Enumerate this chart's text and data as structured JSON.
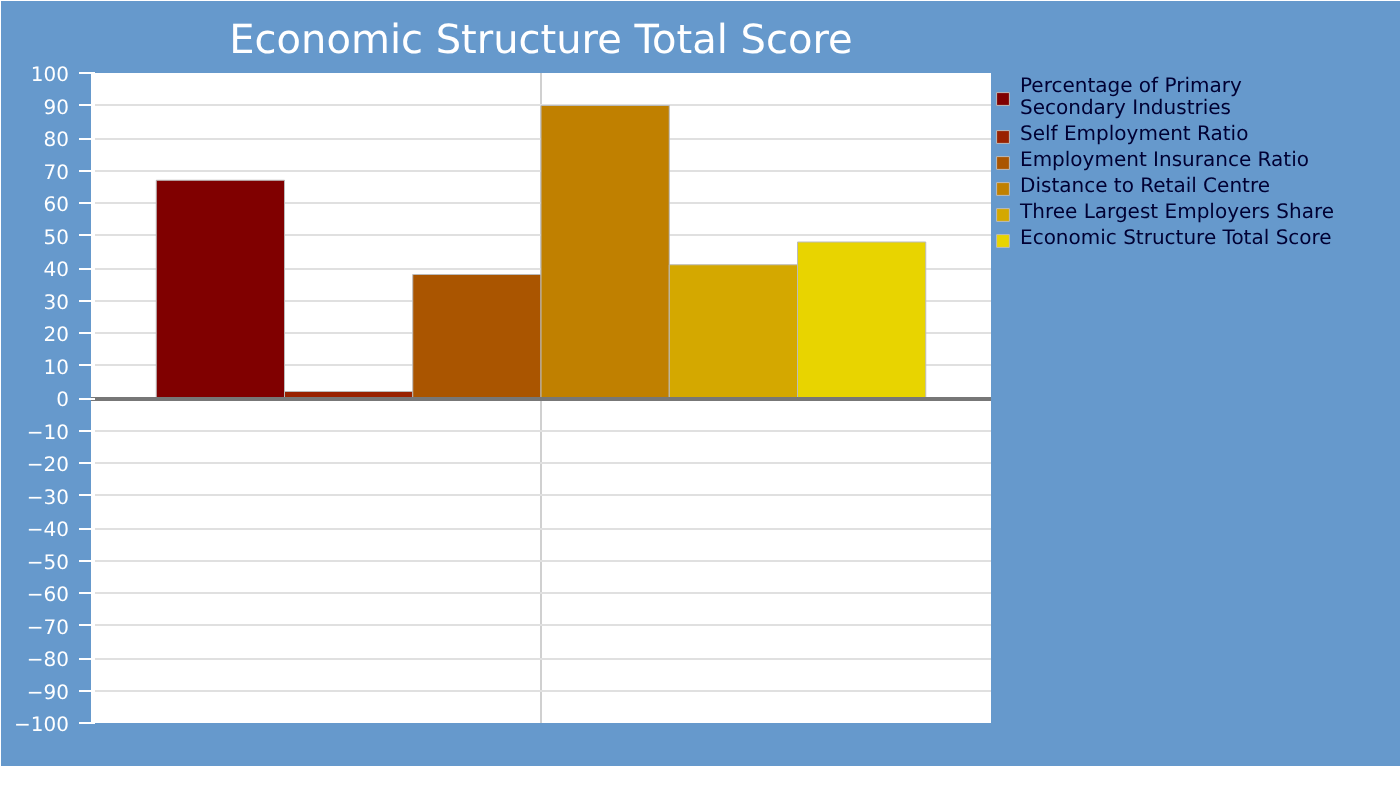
{
  "chart_data": {
    "type": "bar",
    "title": "Economic Structure Total Score",
    "categories": [
      null
    ],
    "series": [
      {
        "name": "Percentage of Primary\nSecondary Industries",
        "color": "#800000",
        "values": [
          67
        ]
      },
      {
        "name": "Self Employment Ratio",
        "color": "#992200",
        "values": [
          2
        ]
      },
      {
        "name": "Employment Insurance Ratio",
        "color": "#aa5500",
        "values": [
          38
        ]
      },
      {
        "name": "Distance to Retail Centre",
        "color": "#c08000",
        "values": [
          90
        ]
      },
      {
        "name": "Three Largest Employers Share",
        "color": "#d4a800",
        "values": [
          41
        ]
      },
      {
        "name": "Economic Structure Total Score",
        "color": "#e8d400",
        "values": [
          48
        ]
      }
    ],
    "ylim": [
      -100,
      100
    ],
    "yticks": [
      -100,
      -90,
      -80,
      -70,
      -60,
      -50,
      -40,
      -30,
      -20,
      -10,
      0,
      10,
      20,
      30,
      40,
      50,
      60,
      70,
      80,
      90,
      100
    ],
    "grid": true,
    "legend": "right"
  }
}
